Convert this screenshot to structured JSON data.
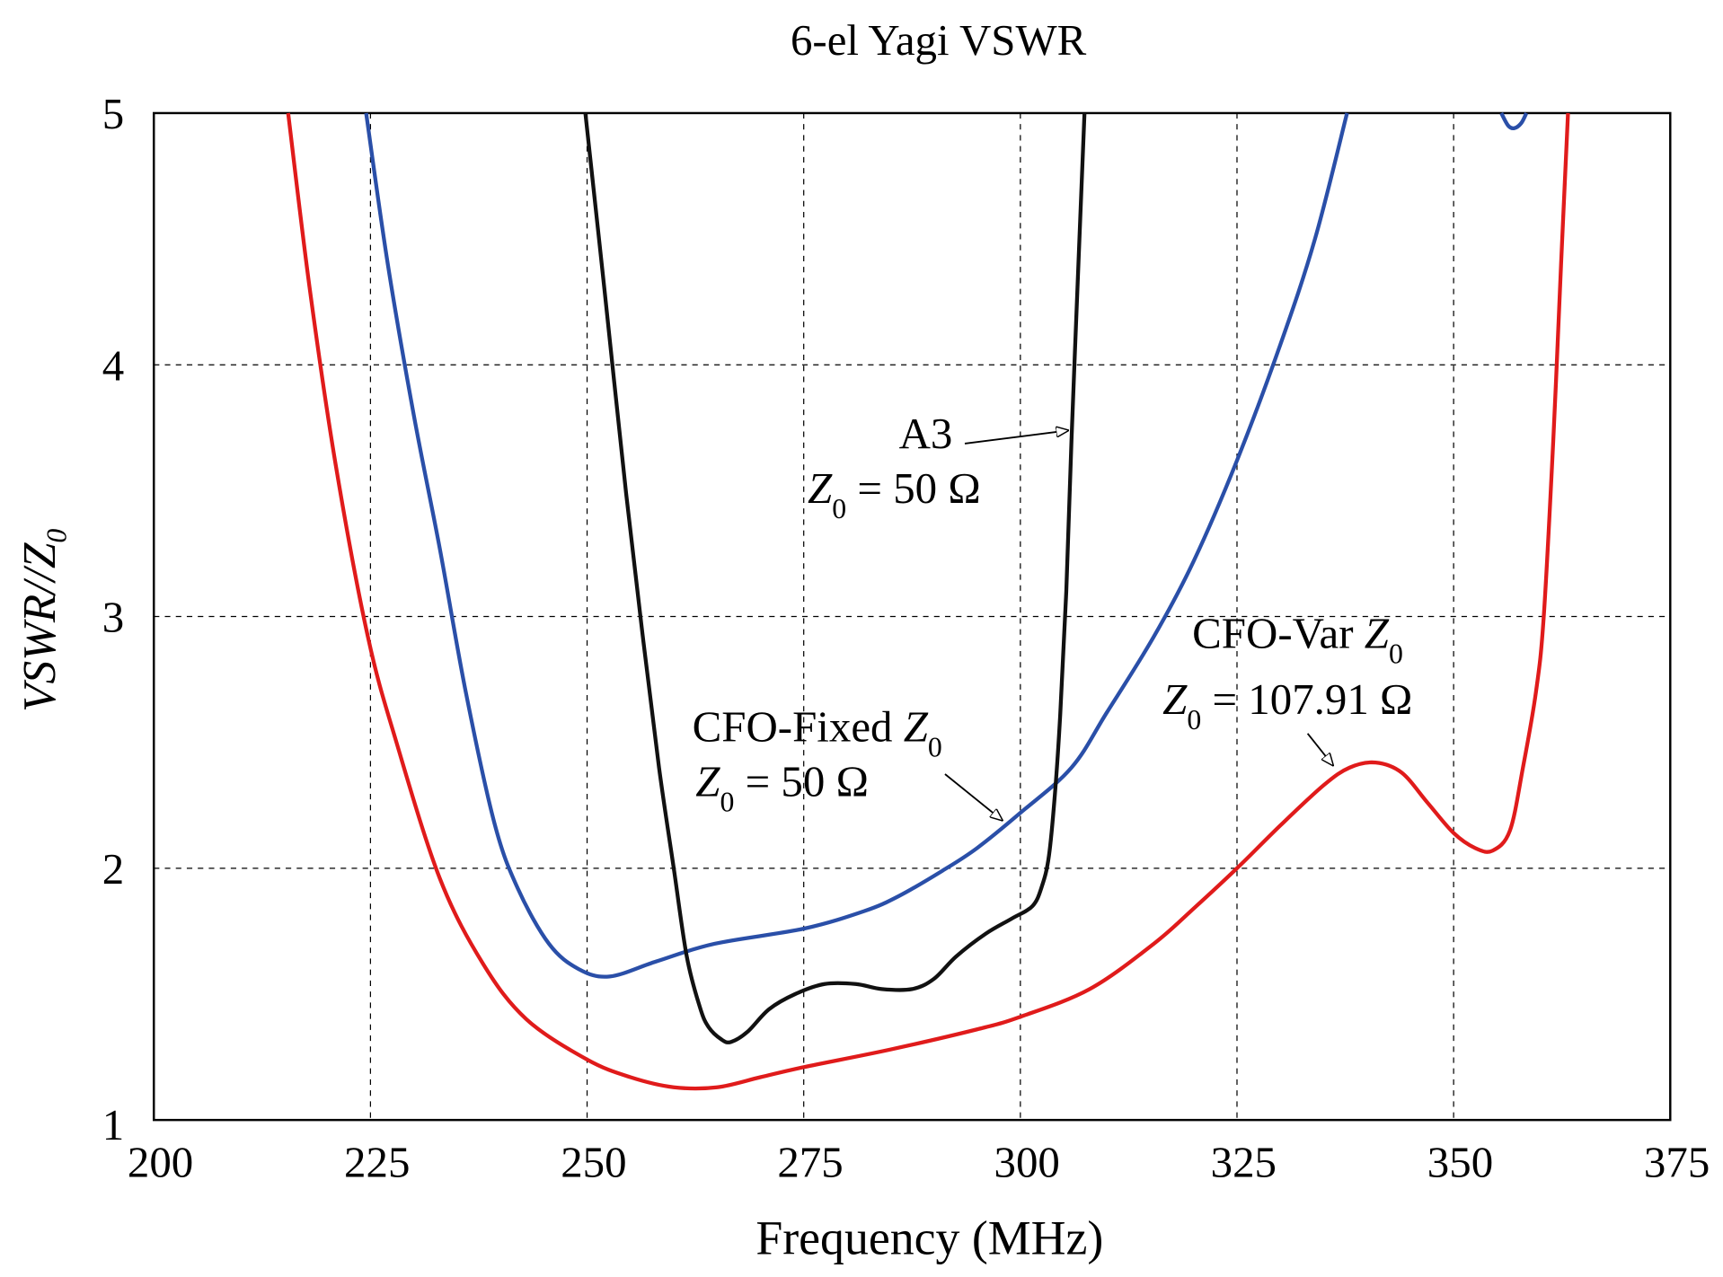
{
  "chart_data": {
    "type": "line",
    "title": "6-el Yagi VSWR",
    "xlabel": "Frequency (MHz)",
    "ylabel": {
      "main": "VSWR//Z",
      "sub": "0"
    },
    "xlim": [
      200,
      375
    ],
    "ylim": [
      1,
      5
    ],
    "xticks": [
      "200",
      "225",
      "250",
      "275",
      "300",
      "325",
      "350",
      "375"
    ],
    "yticks": [
      "1",
      "2",
      "3",
      "4",
      "5"
    ],
    "grid": true,
    "series": [
      {
        "key": "var",
        "color": "#e01b1b",
        "points": [
          [
            215.5,
            5
          ],
          [
            218,
            4.3
          ],
          [
            221,
            3.6
          ],
          [
            224.7,
            2.92
          ],
          [
            228,
            2.5
          ],
          [
            233,
            1.96
          ],
          [
            238,
            1.62
          ],
          [
            243,
            1.4
          ],
          [
            250,
            1.24
          ],
          [
            255,
            1.17
          ],
          [
            260,
            1.13
          ],
          [
            265,
            1.13
          ],
          [
            270,
            1.17
          ],
          [
            275,
            1.21
          ],
          [
            285,
            1.28
          ],
          [
            295,
            1.36
          ],
          [
            300,
            1.41
          ],
          [
            308,
            1.52
          ],
          [
            315.4,
            1.7
          ],
          [
            320,
            1.84
          ],
          [
            325,
            2.0
          ],
          [
            330,
            2.17
          ],
          [
            335,
            2.33
          ],
          [
            338,
            2.4
          ],
          [
            341,
            2.42
          ],
          [
            344,
            2.38
          ],
          [
            347,
            2.26
          ],
          [
            350,
            2.14
          ],
          [
            352.5,
            2.08
          ],
          [
            354.5,
            2.07
          ],
          [
            356.5,
            2.15
          ],
          [
            358,
            2.4
          ],
          [
            359.5,
            2.7
          ],
          [
            360.4,
            3.0
          ],
          [
            361.5,
            3.7
          ],
          [
            362.4,
            4.4
          ],
          [
            363.2,
            5
          ]
        ]
      },
      {
        "key": "fixed",
        "color": "#2a4fa8",
        "points": [
          [
            224.5,
            5
          ],
          [
            227,
            4.4
          ],
          [
            230,
            3.8
          ],
          [
            233,
            3.27
          ],
          [
            236,
            2.7
          ],
          [
            239.3,
            2.18
          ],
          [
            242,
            1.92
          ],
          [
            245.6,
            1.7
          ],
          [
            249,
            1.6
          ],
          [
            252.6,
            1.57
          ],
          [
            258,
            1.63
          ],
          [
            264.7,
            1.7
          ],
          [
            275,
            1.76
          ],
          [
            282,
            1.83
          ],
          [
            286,
            1.89
          ],
          [
            291,
            1.99
          ],
          [
            295,
            2.08
          ],
          [
            300,
            2.22
          ],
          [
            305.9,
            2.4
          ],
          [
            310,
            2.62
          ],
          [
            315.4,
            2.92
          ],
          [
            320,
            3.22
          ],
          [
            325,
            3.62
          ],
          [
            330,
            4.08
          ],
          [
            334,
            4.5
          ],
          [
            337.7,
            5
          ]
        ]
      },
      {
        "key": "a3",
        "color": "#111111",
        "points": [
          [
            249.8,
            5
          ],
          [
            252,
            4.3
          ],
          [
            254.5,
            3.49
          ],
          [
            256.5,
            2.9
          ],
          [
            258.3,
            2.4
          ],
          [
            260,
            2.0
          ],
          [
            261.5,
            1.65
          ],
          [
            263,
            1.45
          ],
          [
            264,
            1.37
          ],
          [
            265.5,
            1.32
          ],
          [
            266.6,
            1.31
          ],
          [
            268.5,
            1.35
          ],
          [
            271,
            1.44
          ],
          [
            274,
            1.5
          ],
          [
            277.4,
            1.54
          ],
          [
            281,
            1.54
          ],
          [
            284,
            1.52
          ],
          [
            287.5,
            1.52
          ],
          [
            290,
            1.56
          ],
          [
            292.6,
            1.65
          ],
          [
            296,
            1.74
          ],
          [
            299,
            1.8
          ],
          [
            301.4,
            1.85
          ],
          [
            302.5,
            1.93
          ],
          [
            303.3,
            2.05
          ],
          [
            304,
            2.3
          ],
          [
            304.6,
            2.61
          ],
          [
            305.3,
            3.1
          ],
          [
            305.9,
            3.7
          ],
          [
            306.7,
            4.4
          ],
          [
            307.4,
            5
          ]
        ]
      },
      {
        "key": "fixed_blip",
        "color": "#2a4fa8",
        "points": [
          [
            355.5,
            5
          ],
          [
            356.3,
            4.95
          ],
          [
            357,
            4.94
          ],
          [
            357.8,
            4.96
          ],
          [
            358.4,
            5
          ]
        ]
      }
    ],
    "annotations": {
      "a3": {
        "name": "A3",
        "z": "Z",
        "zsub": "0",
        "value": " = 50  Ω"
      },
      "fixed": {
        "name": "CFO-Fixed ",
        "nameZ": "Z",
        "nameSub": "0",
        "z": "Z",
        "zsub": "0",
        "value": " = 50  Ω"
      },
      "var": {
        "name": "CFO-Var ",
        "nameZ": "Z",
        "nameSub": "0",
        "z": "Z",
        "zsub": "0",
        "value": " = 107.91 Ω"
      }
    }
  }
}
